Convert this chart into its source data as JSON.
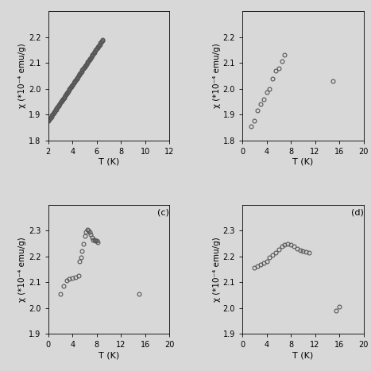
{
  "panel_a": {
    "T": [
      2.0,
      2.05,
      2.1,
      2.15,
      2.2,
      2.25,
      2.3,
      2.35,
      2.4,
      2.45,
      2.5,
      2.55,
      2.6,
      2.65,
      2.7,
      2.75,
      2.8,
      2.85,
      2.9,
      2.95,
      3.0,
      3.05,
      3.1,
      3.15,
      3.2,
      3.25,
      3.3,
      3.35,
      3.4,
      3.45,
      3.5,
      3.55,
      3.6,
      3.65,
      3.7,
      3.75,
      3.8,
      3.85,
      3.9,
      3.95,
      4.0,
      4.05,
      4.1,
      4.15,
      4.2,
      4.25,
      4.3,
      4.35,
      4.4,
      4.45,
      4.5,
      4.55,
      4.6,
      4.65,
      4.7,
      4.75,
      4.8,
      4.85,
      4.9,
      4.95,
      5.0,
      5.05,
      5.1,
      5.15,
      5.2,
      5.25,
      5.3,
      5.35,
      5.4,
      5.45,
      5.5,
      5.55,
      5.6,
      5.65,
      5.7,
      5.75,
      5.8,
      5.85,
      5.9,
      5.95,
      6.0,
      6.05,
      6.1,
      6.15,
      6.2,
      6.25,
      6.3,
      6.35,
      6.4,
      6.45,
      6.5
    ],
    "chi": [
      1.875,
      1.878,
      1.882,
      1.885,
      1.889,
      1.892,
      1.896,
      1.899,
      1.903,
      1.906,
      1.91,
      1.913,
      1.917,
      1.92,
      1.924,
      1.927,
      1.931,
      1.934,
      1.938,
      1.941,
      1.945,
      1.948,
      1.952,
      1.955,
      1.959,
      1.962,
      1.966,
      1.969,
      1.973,
      1.976,
      1.98,
      1.983,
      1.987,
      1.99,
      1.994,
      1.997,
      2.001,
      2.004,
      2.008,
      2.011,
      2.015,
      2.018,
      2.022,
      2.025,
      2.029,
      2.032,
      2.036,
      2.039,
      2.043,
      2.046,
      2.05,
      2.053,
      2.057,
      2.06,
      2.064,
      2.067,
      2.071,
      2.074,
      2.078,
      2.081,
      2.085,
      2.088,
      2.092,
      2.095,
      2.099,
      2.102,
      2.106,
      2.109,
      2.113,
      2.116,
      2.12,
      2.123,
      2.127,
      2.13,
      2.134,
      2.137,
      2.141,
      2.144,
      2.148,
      2.151,
      2.155,
      2.158,
      2.162,
      2.165,
      2.169,
      2.172,
      2.176,
      2.179,
      2.183,
      2.186,
      2.19
    ],
    "xlabel": "T (K)",
    "ylabel": "χ (*10⁻⁴ emu/g)",
    "xlim": [
      2,
      12
    ],
    "ylim": [
      1.8,
      2.3
    ],
    "xticks": [
      2,
      4,
      6,
      8,
      10,
      12
    ],
    "yticks": [
      1.8,
      1.9,
      2.0,
      2.1,
      2.2
    ]
  },
  "panel_b": {
    "T": [
      1.5,
      2.0,
      2.5,
      3.0,
      3.5,
      4.0,
      4.5,
      5.0,
      5.5,
      6.0,
      6.5,
      7.0,
      15.0
    ],
    "chi": [
      1.855,
      1.875,
      1.915,
      1.94,
      1.96,
      1.985,
      2.0,
      2.04,
      2.07,
      2.08,
      2.107,
      2.13,
      2.03
    ],
    "xlabel": "T (K)",
    "ylabel": "χ (*10⁻⁴ emu/g)",
    "xlim": [
      0,
      20
    ],
    "ylim": [
      1.8,
      2.3
    ],
    "xticks": [
      0,
      4,
      8,
      12,
      16,
      20
    ],
    "yticks": [
      1.8,
      1.9,
      2.0,
      2.1,
      2.2
    ]
  },
  "panel_c": {
    "T": [
      2.0,
      2.5,
      3.0,
      3.5,
      4.0,
      4.5,
      5.0,
      5.2,
      5.4,
      5.6,
      5.8,
      6.0,
      6.2,
      6.4,
      6.6,
      6.8,
      7.0,
      7.2,
      7.4,
      7.6,
      7.8,
      8.0,
      8.2,
      15.0
    ],
    "chi": [
      2.055,
      2.085,
      2.107,
      2.112,
      2.116,
      2.12,
      2.125,
      2.18,
      2.195,
      2.22,
      2.25,
      2.28,
      2.296,
      2.303,
      2.3,
      2.295,
      2.285,
      2.272,
      2.265,
      2.263,
      2.26,
      2.26,
      2.255,
      2.055
    ],
    "xlabel": "T (K)",
    "ylabel": "χ (*10⁻⁴ emu/g)",
    "xlim": [
      0,
      20
    ],
    "ylim": [
      1.9,
      2.4
    ],
    "xticks": [
      0,
      4,
      8,
      12,
      16,
      20
    ],
    "yticks": [
      1.9,
      2.0,
      2.1,
      2.2,
      2.3
    ],
    "label": "(c)"
  },
  "panel_d": {
    "T": [
      2.0,
      2.5,
      3.0,
      3.5,
      4.0,
      4.5,
      5.0,
      5.5,
      6.0,
      6.5,
      7.0,
      7.5,
      8.0,
      8.5,
      9.0,
      9.5,
      10.0,
      10.5,
      11.0,
      15.5,
      16.0
    ],
    "chi": [
      2.155,
      2.162,
      2.168,
      2.175,
      2.182,
      2.195,
      2.205,
      2.215,
      2.228,
      2.238,
      2.245,
      2.248,
      2.245,
      2.24,
      2.23,
      2.225,
      2.22,
      2.218,
      2.215,
      1.99,
      2.005
    ],
    "xlabel": "T (K)",
    "ylabel": "χ (*10⁻⁴ emu/g)",
    "xlim": [
      0,
      20
    ],
    "ylim": [
      1.9,
      2.4
    ],
    "xticks": [
      0,
      4,
      8,
      12,
      16,
      20
    ],
    "yticks": [
      1.9,
      2.0,
      2.1,
      2.2,
      2.3
    ],
    "label": "(d)"
  },
  "marker": "o",
  "marker_size": 3.5,
  "marker_facecolor": "none",
  "marker_edgecolor": "#555555",
  "marker_edgewidth": 0.8,
  "fig_facecolor": "#d8d8d8",
  "plot_facecolor": "#d8d8d8",
  "label_fontsize": 7.5,
  "tick_fontsize": 7,
  "xlabel_fontsize": 8
}
